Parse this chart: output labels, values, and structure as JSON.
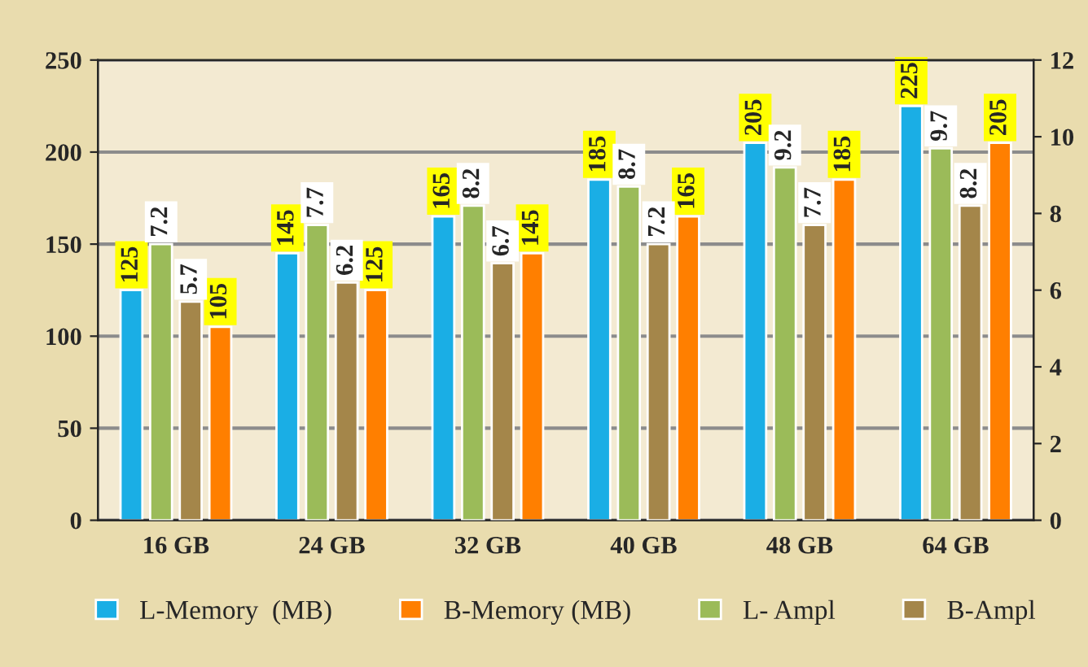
{
  "chart_data": {
    "type": "bar",
    "categories": [
      "16 GB",
      "24 GB",
      "32 GB",
      "40 GB",
      "48 GB",
      "64 GB"
    ],
    "series": [
      {
        "name": "L-Memory  (MB)",
        "color": "#1aaee5",
        "values": [
          125,
          145,
          165,
          185,
          205,
          225
        ]
      },
      {
        "name": "B-Memory (MB)",
        "color": "#ff7f00",
        "values": [
          105,
          125,
          145,
          165,
          185,
          205
        ]
      },
      {
        "name": "L- Ampl",
        "color": "#9bbb59",
        "axis": "y2",
        "values": [
          7.2,
          7.7,
          8.2,
          8.7,
          9.2,
          9.7
        ]
      },
      {
        "name": "B-Ampl",
        "color": "#a4864a",
        "axis": "y2",
        "values": [
          5.7,
          6.2,
          6.7,
          7.2,
          7.7,
          8.2
        ]
      }
    ],
    "ylim": [
      0,
      250
    ],
    "yticks": [
      0,
      50,
      100,
      150,
      200,
      250
    ],
    "y2lim": [
      0,
      12
    ],
    "y2ticks": [
      0,
      2,
      4,
      6,
      8,
      10,
      12
    ],
    "grid": "y",
    "legend": "bottom",
    "data_labels": true
  }
}
